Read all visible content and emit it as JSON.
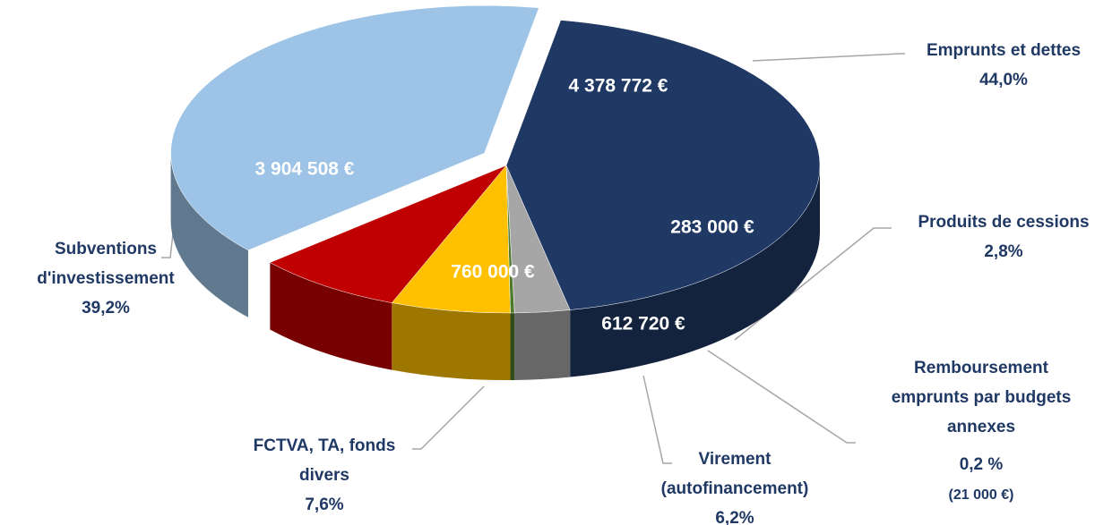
{
  "chart_data": {
    "type": "pie",
    "categories": [
      "Emprunts et dettes",
      "Produits de cessions",
      "Remboursement emprunts par budgets annexes",
      "Virement (autofinancement)",
      "FCTVA, TA, fonds divers",
      "Subventions d'investissement"
    ],
    "values": [
      4378772,
      283000,
      21000,
      612720,
      760000,
      3904508
    ],
    "value_labels": [
      "4 378 772 €",
      "283 000 €",
      "(21 000 €)",
      "612 720 €",
      "760 000 €",
      "3 904 508 €"
    ],
    "percent_values": [
      44.0,
      2.8,
      0.2,
      6.2,
      7.6,
      39.2
    ],
    "percent_labels": [
      "44,0%",
      "2,8%",
      "0,2 %",
      "6,2%",
      "7,6%",
      "39,2%"
    ],
    "colors": [
      "#1f3864",
      "#a6a6a6",
      "#4e7a2a",
      "#ffc000",
      "#c00000",
      "#9dc3e6"
    ]
  }
}
